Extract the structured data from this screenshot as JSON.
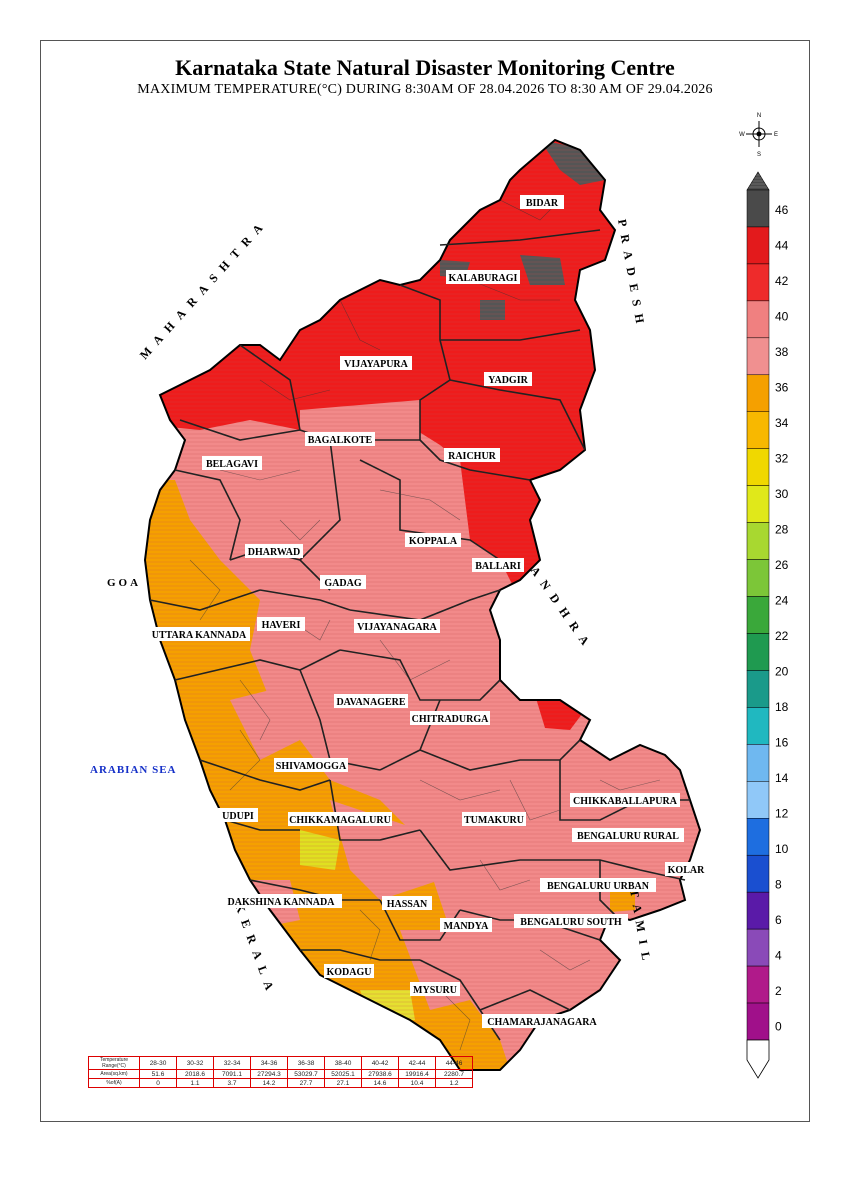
{
  "header": {
    "title": "Karnataka State Natural Disaster Monitoring Centre",
    "subtitle": "MAXIMUM TEMPERATURE(°C) DURING 8:30AM OF 28.04.2026 TO 8:30 AM OF 29.04.2026"
  },
  "neighbours": {
    "maharashtra": "MAHARASHTRA",
    "pradesh": "PRADESH",
    "andhra": "ANDHRA",
    "tamil": "TAMIL",
    "kerala": "KERALA",
    "goa": "GOA",
    "sea": "ARABIAN SEA"
  },
  "districts": {
    "bidar": "BIDAR",
    "kalaburagi": "KALABURAGI",
    "vijayapura": "VIJAYAPURA",
    "yadgir": "YADGIR",
    "bagalkote": "BAGALKOTE",
    "raichur": "RAICHUR",
    "belagavi": "BELAGAVI",
    "koppala": "KOPPALA",
    "dharwad": "DHARWAD",
    "ballari": "BALLARI",
    "gadag": "GADAG",
    "haveri": "HAVERI",
    "vijayanagara": "VIJAYANAGARA",
    "uttara_kannada": "UTTARA KANNADA",
    "davanagere": "DAVANAGERE",
    "chitradurga": "CHITRADURGA",
    "shivamogga": "SHIVAMOGGA",
    "chikkaballapura": "CHIKKABALLAPURA",
    "udupi": "UDUPI",
    "chikkamagaluru": "CHIKKAMAGALURU",
    "tumakuru": "TUMAKURU",
    "bengaluru_rural": "BENGALURU RURAL",
    "kolar": "KOLAR",
    "bengaluru_urban": "BENGALURU URBAN",
    "dakshina_kannada": "DAKSHINA KANNADA",
    "hassan": "HASSAN",
    "mandya": "MANDYA",
    "bengaluru_south": "BENGALURU SOUTH",
    "kodagu": "KODAGU",
    "mysuru": "MYSURU",
    "chamarajanagara": "CHAMARAJANAGARA"
  },
  "compass": {
    "n": "N",
    "s": "S",
    "e": "E",
    "w": "W"
  },
  "legend": {
    "ticks": [
      "46",
      "44",
      "42",
      "40",
      "38",
      "36",
      "34",
      "32",
      "30",
      "28",
      "26",
      "24",
      "22",
      "20",
      "18",
      "16",
      "14",
      "12",
      "10",
      "8",
      "6",
      "4",
      "2",
      "0"
    ],
    "bands": [
      {
        "range": "44-46",
        "color": "#4a4a4a"
      },
      {
        "range": "42-44",
        "color": "#e31a1c"
      },
      {
        "range": "40-42",
        "color": "#ee2b2b"
      },
      {
        "range": "38-40",
        "color": "#f08080"
      },
      {
        "range": "36-38",
        "color": "#f09090"
      },
      {
        "range": "34-36",
        "color": "#f5a000"
      },
      {
        "range": "32-34",
        "color": "#f8b800"
      },
      {
        "range": "30-32",
        "color": "#f0d800"
      },
      {
        "range": "28-30",
        "color": "#e0e81a"
      },
      {
        "range": "26-28",
        "color": "#a8d830"
      },
      {
        "range": "24-26",
        "color": "#7cc638"
      },
      {
        "range": "22-24",
        "color": "#3aa83a"
      },
      {
        "range": "20-22",
        "color": "#1f9a50"
      },
      {
        "range": "18-20",
        "color": "#1a9a8a"
      },
      {
        "range": "16-18",
        "color": "#20b8c0"
      },
      {
        "range": "14-16",
        "color": "#6fb8f0"
      },
      {
        "range": "12-14",
        "color": "#90c8f8"
      },
      {
        "range": "10-12",
        "color": "#1e6ee0"
      },
      {
        "range": "8-10",
        "color": "#1a4fd0"
      },
      {
        "range": "6-8",
        "color": "#5a1aa8"
      },
      {
        "range": "4-6",
        "color": "#8a4ab8"
      },
      {
        "range": "2-4",
        "color": "#b01a8a"
      },
      {
        "range": "0-2",
        "color": "#a0108a"
      }
    ]
  },
  "stats_table": {
    "row_labels": [
      "Temperature Range(°C)",
      "Area(sq.km)",
      "%of(A)"
    ],
    "ranges": [
      "28-30",
      "30-32",
      "32-34",
      "34-36",
      "36-38",
      "38-40",
      "40-42",
      "42-44",
      "44-46"
    ],
    "area": [
      "51.6",
      "2018.6",
      "7091.1",
      "27294.3",
      "53029.7",
      "52025.1",
      "27938.6",
      "19916.4",
      "2280.7"
    ],
    "percent": [
      "0",
      "1.1",
      "3.7",
      "14.2",
      "27.7",
      "27.1",
      "14.6",
      "10.4",
      "1.2"
    ]
  }
}
